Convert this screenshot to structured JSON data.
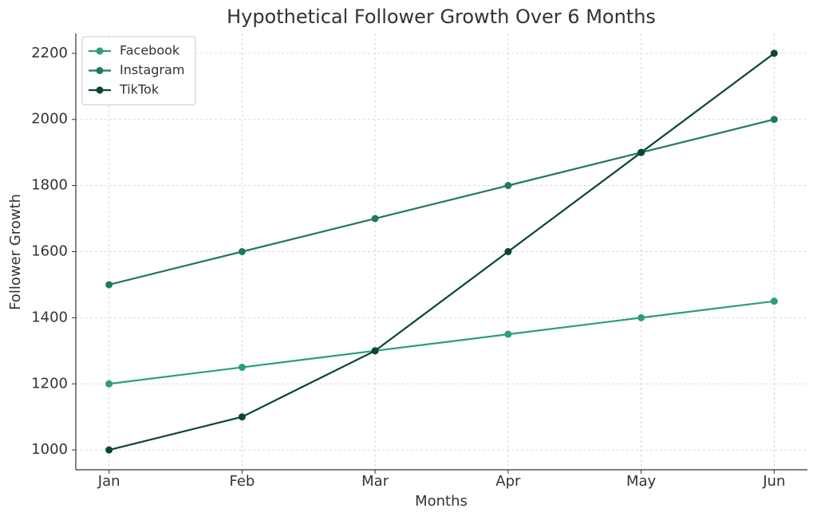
{
  "chart_data": {
    "type": "line",
    "title": "Hypothetical Follower Growth Over 6 Months",
    "x_label": "Months",
    "y_label": "Follower Growth",
    "categories": [
      "Jan",
      "Feb",
      "Mar",
      "Apr",
      "May",
      "Jun"
    ],
    "series": [
      {
        "name": "Facebook",
        "color": "#2a9d80",
        "values": [
          1200,
          1250,
          1300,
          1350,
          1400,
          1450
        ]
      },
      {
        "name": "Instagram",
        "color": "#1e7a5e",
        "values": [
          1500,
          1600,
          1700,
          1800,
          1900,
          2000
        ]
      },
      {
        "name": "TikTok",
        "color": "#0b4535",
        "values": [
          1000,
          1100,
          1300,
          1600,
          1900,
          2200
        ]
      }
    ],
    "ylim": [
      940,
      2260
    ],
    "yticks": [
      1000,
      1200,
      1400,
      1600,
      1800,
      2000,
      2200
    ],
    "grid": true,
    "legend": "upper left"
  }
}
